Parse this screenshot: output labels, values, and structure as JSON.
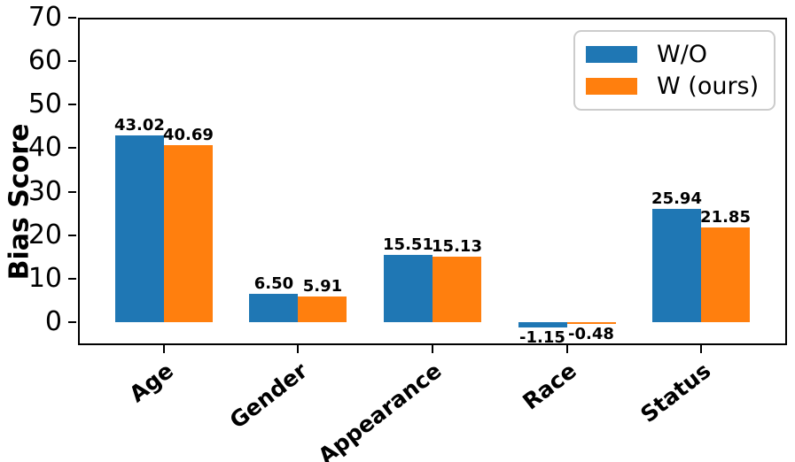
{
  "chart_data": {
    "type": "bar",
    "title": "",
    "categories": [
      "Age",
      "Gender",
      "Appearance",
      "Race",
      "Status"
    ],
    "series": [
      {
        "name": "W/O",
        "color": "#1f77b4",
        "values": [
          43.02,
          6.5,
          15.51,
          -1.15,
          25.94
        ]
      },
      {
        "name": "W (ours)",
        "color": "#ff7f0e",
        "values": [
          40.69,
          5.91,
          15.13,
          -0.48,
          21.85
        ]
      }
    ],
    "ylabel": "Bias Score",
    "xlabel": "",
    "yticks": [
      0,
      10,
      20,
      30,
      40,
      50,
      60,
      70
    ],
    "ylim": [
      -5.3,
      70
    ],
    "grid": false,
    "value_label_decimals": 2,
    "legend": {
      "position": "upper right",
      "entries": [
        "W/O",
        "W (ours)"
      ]
    }
  }
}
